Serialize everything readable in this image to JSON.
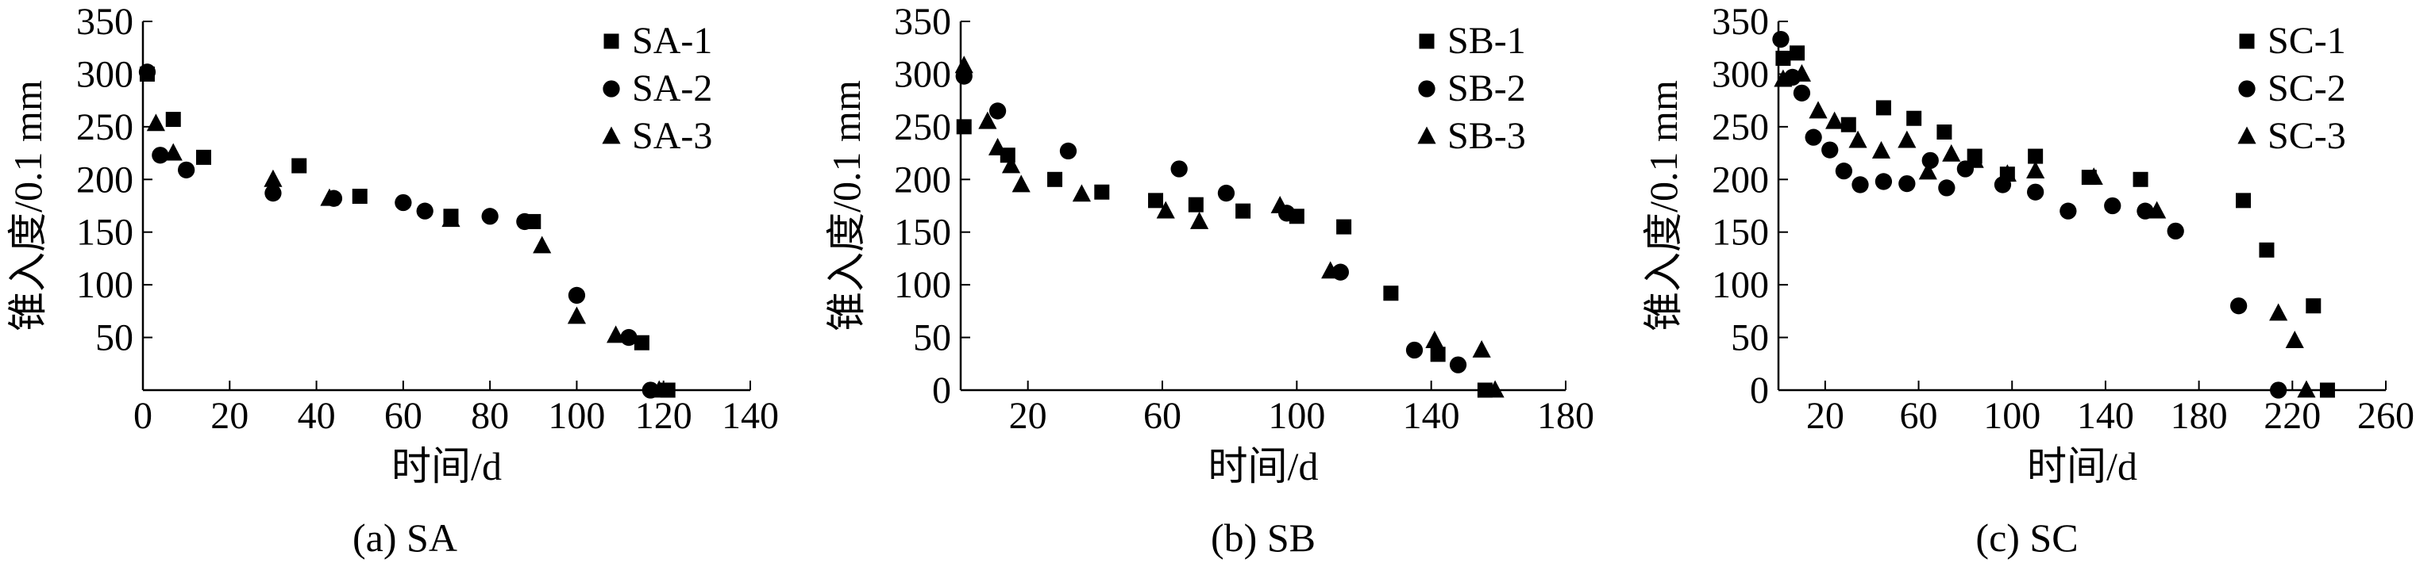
{
  "figure": {
    "colors": {
      "ink": "#000000",
      "background": "#ffffff"
    }
  },
  "chart_data": [
    {
      "type": "scatter",
      "caption": "(a) SA",
      "xlabel": "时间/d",
      "ylabel": "锥入度/0.1 mm",
      "xlim": [
        0,
        140
      ],
      "ylim": [
        0,
        350
      ],
      "xticks": [
        "0",
        "20",
        "40",
        "60",
        "80",
        "100",
        "120",
        "140"
      ],
      "yticks": [
        "50",
        "100",
        "150",
        "200",
        "250",
        "300",
        "350"
      ],
      "legend_position": "top-right",
      "series": [
        {
          "name": "SA-1",
          "marker": "square",
          "points": [
            [
              1,
              300
            ],
            [
              7,
              257
            ],
            [
              14,
              221
            ],
            [
              36,
              213
            ],
            [
              50,
              184
            ],
            [
              71,
              165
            ],
            [
              90,
              160
            ],
            [
              115,
              45
            ],
            [
              121,
              0
            ]
          ]
        },
        {
          "name": "SA-2",
          "marker": "circle",
          "points": [
            [
              1,
              302
            ],
            [
              4,
              223
            ],
            [
              10,
              209
            ],
            [
              30,
              187
            ],
            [
              44,
              182
            ],
            [
              60,
              178
            ],
            [
              65,
              170
            ],
            [
              80,
              165
            ],
            [
              88,
              160
            ],
            [
              100,
              90
            ],
            [
              112,
              50
            ],
            [
              117,
              0
            ]
          ]
        },
        {
          "name": "SA-3",
          "marker": "triangle",
          "points": [
            [
              3,
              253
            ],
            [
              7,
              225
            ],
            [
              30,
              200
            ],
            [
              43,
              182
            ],
            [
              71,
              162
            ],
            [
              92,
              137
            ],
            [
              100,
              70
            ],
            [
              109,
              52
            ],
            [
              119,
              0
            ]
          ]
        }
      ]
    },
    {
      "type": "scatter",
      "caption": "(b) SB",
      "xlabel": "时间/d",
      "ylabel": "锥入度/0.1 mm",
      "xlim": [
        0,
        180
      ],
      "ylim": [
        0,
        350
      ],
      "xticks": [
        "20",
        "60",
        "100",
        "140",
        "180"
      ],
      "yticks": [
        "0",
        "50",
        "100",
        "150",
        "200",
        "250",
        "300",
        "350"
      ],
      "legend_position": "top-right",
      "series": [
        {
          "name": "SB-1",
          "marker": "square",
          "points": [
            [
              1,
              250
            ],
            [
              14,
              223
            ],
            [
              28,
              200
            ],
            [
              42,
              188
            ],
            [
              58,
              180
            ],
            [
              70,
              176
            ],
            [
              84,
              170
            ],
            [
              100,
              165
            ],
            [
              114,
              155
            ],
            [
              128,
              92
            ],
            [
              142,
              34
            ],
            [
              156,
              0
            ]
          ]
        },
        {
          "name": "SB-2",
          "marker": "circle",
          "points": [
            [
              1,
              298
            ],
            [
              11,
              265
            ],
            [
              32,
              227
            ],
            [
              65,
              210
            ],
            [
              79,
              187
            ],
            [
              97,
              168
            ],
            [
              113,
              112
            ],
            [
              135,
              38
            ],
            [
              148,
              24
            ]
          ]
        },
        {
          "name": "SB-3",
          "marker": "triangle",
          "points": [
            [
              1,
              308
            ],
            [
              8,
              255
            ],
            [
              11,
              230
            ],
            [
              15,
              213
            ],
            [
              18,
              195
            ],
            [
              36,
              186
            ],
            [
              61,
              170
            ],
            [
              71,
              160
            ],
            [
              95,
              175
            ],
            [
              110,
              113
            ],
            [
              141,
              47
            ],
            [
              155,
              38
            ],
            [
              159,
              0
            ]
          ]
        }
      ]
    },
    {
      "type": "scatter",
      "caption": "(c) SC",
      "xlabel": "时间/d",
      "ylabel": "锥入度/0.1 mm",
      "xlim": [
        0,
        260
      ],
      "ylim": [
        0,
        350
      ],
      "xticks": [
        "20",
        "60",
        "100",
        "140",
        "180",
        "220",
        "260"
      ],
      "yticks": [
        "0",
        "50",
        "100",
        "150",
        "200",
        "250",
        "300",
        "350"
      ],
      "legend_position": "top-right",
      "series": [
        {
          "name": "SC-1",
          "marker": "square",
          "points": [
            [
              2,
              315
            ],
            [
              8,
              320
            ],
            [
              30,
              252
            ],
            [
              45,
              268
            ],
            [
              58,
              258
            ],
            [
              71,
              245
            ],
            [
              84,
              222
            ],
            [
              98,
              205
            ],
            [
              110,
              222
            ],
            [
              133,
              202
            ],
            [
              155,
              200
            ],
            [
              199,
              180
            ],
            [
              209,
              133
            ],
            [
              229,
              80
            ],
            [
              235,
              0
            ]
          ]
        },
        {
          "name": "SC-2",
          "marker": "circle",
          "points": [
            [
              1,
              333
            ],
            [
              6,
              297
            ],
            [
              10,
              282
            ],
            [
              15,
              240
            ],
            [
              22,
              228
            ],
            [
              28,
              208
            ],
            [
              35,
              195
            ],
            [
              45,
              198
            ],
            [
              55,
              196
            ],
            [
              65,
              218
            ],
            [
              72,
              192
            ],
            [
              80,
              210
            ],
            [
              96,
              195
            ],
            [
              110,
              188
            ],
            [
              124,
              170
            ],
            [
              143,
              175
            ],
            [
              157,
              170
            ],
            [
              170,
              151
            ],
            [
              197,
              80
            ],
            [
              214,
              0
            ]
          ]
        },
        {
          "name": "SC-3",
          "marker": "triangle",
          "points": [
            [
              2,
              295
            ],
            [
              10,
              300
            ],
            [
              17,
              265
            ],
            [
              24,
              255
            ],
            [
              34,
              237
            ],
            [
              44,
              227
            ],
            [
              55,
              237
            ],
            [
              64,
              207
            ],
            [
              74,
              224
            ],
            [
              84,
              218
            ],
            [
              98,
              205
            ],
            [
              110,
              208
            ],
            [
              135,
              202
            ],
            [
              162,
              170
            ],
            [
              214,
              73
            ],
            [
              221,
              47
            ],
            [
              226,
              0
            ]
          ]
        }
      ]
    }
  ]
}
